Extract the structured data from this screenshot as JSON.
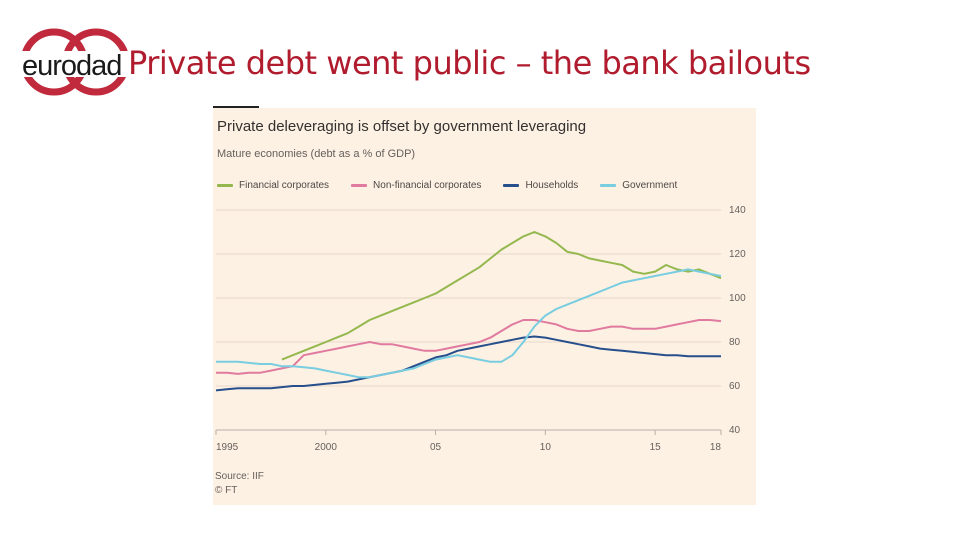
{
  "slide": {
    "title": "Private debt went public – the bank bailouts",
    "logo_text": "eurodad"
  },
  "colors": {
    "title_red": "#b01c2e",
    "logo_ring": "#c02a3c",
    "card_bg": "#fdf1e4"
  },
  "chart_data": {
    "type": "line",
    "title": "Private deleveraging is offset by government leveraging",
    "subtitle": "Mature economies (debt as a % of GDP)",
    "ylim": [
      40,
      140
    ],
    "y_ticks": [
      40,
      60,
      80,
      100,
      120,
      140
    ],
    "y_axis_position": "right",
    "xlim": [
      1995,
      2018
    ],
    "x_ticks": [
      1995,
      2000,
      2005,
      2010,
      2015,
      2018
    ],
    "x_tick_labels": [
      "1995",
      "2000",
      "05",
      "10",
      "15",
      "18"
    ],
    "grid": "horizontal",
    "legend_position": "top",
    "source": "Source: IIF",
    "credit": "© FT",
    "series": [
      {
        "name": "Financial corporates",
        "color": "#94b84d",
        "x": [
          1998,
          1998.5,
          1999,
          1999.5,
          2000,
          2000.5,
          2001,
          2001.5,
          2002,
          2002.5,
          2003,
          2003.5,
          2004,
          2004.5,
          2005,
          2005.5,
          2006,
          2006.5,
          2007,
          2007.5,
          2008,
          2008.5,
          2009,
          2009.5,
          2010,
          2010.5,
          2011,
          2011.5,
          2012,
          2012.5,
          2013,
          2013.5,
          2014,
          2014.5,
          2015,
          2015.5,
          2016,
          2016.5,
          2017,
          2017.5,
          2018
        ],
        "y": [
          72,
          74,
          76,
          78,
          80,
          82,
          84,
          87,
          90,
          92,
          94,
          96,
          98,
          100,
          102,
          105,
          108,
          111,
          114,
          118,
          122,
          125,
          128,
          130,
          128,
          125,
          121,
          120,
          118,
          117,
          116,
          115,
          112,
          111,
          112,
          115,
          113,
          112,
          113,
          111,
          109
        ]
      },
      {
        "name": "Non-financial corporates",
        "color": "#e07a9f",
        "x": [
          1995,
          1995.5,
          1996,
          1996.5,
          1997,
          1997.5,
          1998,
          1998.5,
          1999,
          1999.5,
          2000,
          2000.5,
          2001,
          2001.5,
          2002,
          2002.5,
          2003,
          2003.5,
          2004,
          2004.5,
          2005,
          2005.5,
          2006,
          2006.5,
          2007,
          2007.5,
          2008,
          2008.5,
          2009,
          2009.5,
          2010,
          2010.5,
          2011,
          2011.5,
          2012,
          2012.5,
          2013,
          2013.5,
          2014,
          2014.5,
          2015,
          2015.5,
          2016,
          2016.5,
          2017,
          2017.5,
          2018
        ],
        "y": [
          66,
          66,
          65.5,
          66,
          66,
          67,
          68,
          69,
          74,
          75,
          76,
          77,
          78,
          79,
          80,
          79,
          79,
          78,
          77,
          76,
          76,
          77,
          78,
          79,
          80,
          82,
          85,
          88,
          90,
          90,
          89,
          88,
          86,
          85,
          85,
          86,
          87,
          87,
          86,
          86,
          86,
          87,
          88,
          89,
          90,
          90,
          89.5
        ]
      },
      {
        "name": "Households",
        "color": "#264f8c",
        "x": [
          1995,
          1995.5,
          1996,
          1996.5,
          1997,
          1997.5,
          1998,
          1998.5,
          1999,
          1999.5,
          2000,
          2000.5,
          2001,
          2001.5,
          2002,
          2002.5,
          2003,
          2003.5,
          2004,
          2004.5,
          2005,
          2005.5,
          2006,
          2006.5,
          2007,
          2007.5,
          2008,
          2008.5,
          2009,
          2009.5,
          2010,
          2010.5,
          2011,
          2011.5,
          2012,
          2012.5,
          2013,
          2013.5,
          2014,
          2014.5,
          2015,
          2015.5,
          2016,
          2016.5,
          2017,
          2017.5,
          2018
        ],
        "y": [
          58,
          58.5,
          59,
          59,
          59,
          59,
          59.5,
          60,
          60,
          60.5,
          61,
          61.5,
          62,
          63,
          64,
          65,
          66,
          67,
          69,
          71,
          73,
          74,
          76,
          77,
          78,
          79,
          80,
          81,
          82,
          82.5,
          82,
          81,
          80,
          79,
          78,
          77,
          76.5,
          76,
          75.5,
          75,
          74.5,
          74,
          74,
          73.5,
          73.5,
          73.5,
          73.5
        ]
      },
      {
        "name": "Government",
        "color": "#79cde0",
        "x": [
          1995,
          1995.5,
          1996,
          1996.5,
          1997,
          1997.5,
          1998,
          1998.5,
          1999,
          1999.5,
          2000,
          2000.5,
          2001,
          2001.5,
          2002,
          2002.5,
          2003,
          2003.5,
          2004,
          2004.5,
          2005,
          2005.5,
          2006,
          2006.5,
          2007,
          2007.5,
          2008,
          2008.5,
          2009,
          2009.5,
          2010,
          2010.5,
          2011,
          2011.5,
          2012,
          2012.5,
          2013,
          2013.5,
          2014,
          2014.5,
          2015,
          2015.5,
          2016,
          2016.5,
          2017,
          2017.5,
          2018
        ],
        "y": [
          71,
          71,
          71,
          70.5,
          70,
          70,
          69,
          69,
          68.5,
          68,
          67,
          66,
          65,
          64,
          64,
          65,
          66,
          67,
          68,
          70,
          72,
          73,
          74,
          73,
          72,
          71,
          71,
          74,
          80,
          87,
          92,
          95,
          97,
          99,
          101,
          103,
          105,
          107,
          108,
          109,
          110,
          111,
          112,
          113,
          112,
          111,
          110
        ]
      }
    ]
  }
}
